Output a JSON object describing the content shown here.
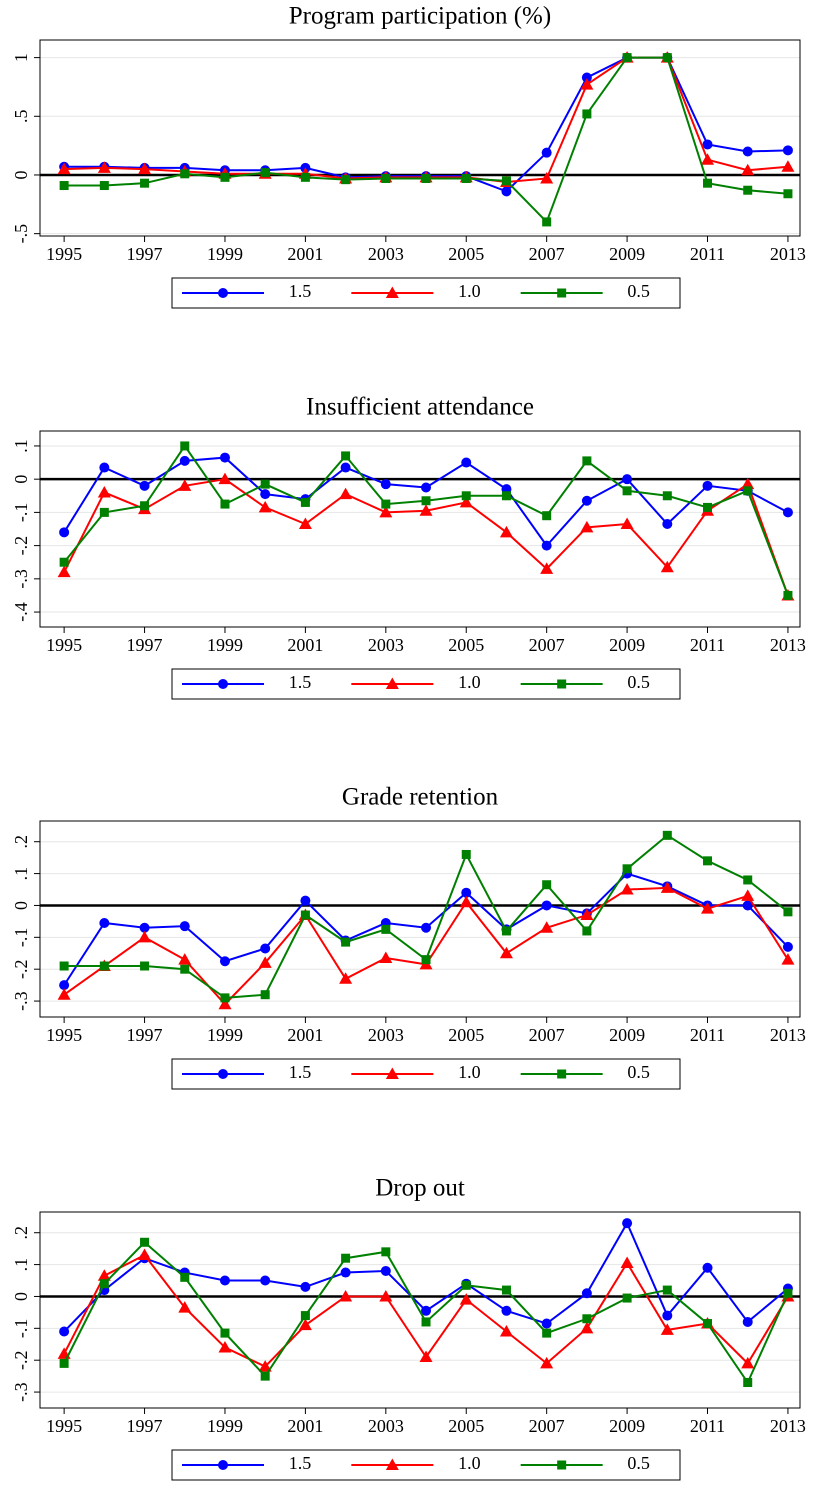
{
  "chart_data": [
    {
      "type": "line",
      "title": "Program participation (%)",
      "x": [
        1995,
        1996,
        1997,
        1998,
        1999,
        2000,
        2001,
        2002,
        2003,
        2004,
        2005,
        2006,
        2007,
        2008,
        2009,
        2010,
        2011,
        2012,
        2013
      ],
      "xlim": [
        1994.4,
        2013.3
      ],
      "xticks": [
        1995,
        1997,
        1999,
        2001,
        2003,
        2005,
        2007,
        2009,
        2011,
        2013
      ],
      "ylim": [
        -0.52,
        1.15
      ],
      "yticks": [
        {
          "value": -0.5,
          "label": "-.5"
        },
        0,
        {
          "value": 0.5,
          "label": ".5"
        },
        1
      ],
      "grid": true,
      "series": [
        {
          "name": "1.5",
          "color": "#0000ff",
          "marker": "circle",
          "values": [
            0.07,
            0.07,
            0.06,
            0.06,
            0.04,
            0.04,
            0.06,
            -0.02,
            -0.01,
            -0.01,
            -0.01,
            -0.14,
            0.19,
            0.83,
            1.0,
            1.0,
            0.26,
            0.2,
            0.21
          ]
        },
        {
          "name": "1.0",
          "color": "#ff0000",
          "marker": "triangle",
          "values": [
            0.05,
            0.06,
            0.05,
            0.03,
            0.01,
            0.01,
            0.01,
            -0.03,
            -0.02,
            -0.02,
            -0.02,
            -0.06,
            -0.03,
            0.77,
            1.0,
            1.0,
            0.13,
            0.04,
            0.07
          ]
        },
        {
          "name": "0.5",
          "color": "#008000",
          "marker": "square",
          "values": [
            -0.09,
            -0.09,
            -0.07,
            0.01,
            -0.02,
            0.02,
            -0.02,
            -0.04,
            -0.03,
            -0.03,
            -0.03,
            -0.05,
            -0.4,
            0.52,
            1.0,
            1.0,
            -0.07,
            -0.13,
            -0.16
          ]
        }
      ]
    },
    {
      "type": "line",
      "title": "Insufficient attendance",
      "x": [
        1995,
        1996,
        1997,
        1998,
        1999,
        2000,
        2001,
        2002,
        2003,
        2004,
        2005,
        2006,
        2007,
        2008,
        2009,
        2010,
        2011,
        2012,
        2013
      ],
      "xlim": [
        1994.4,
        2013.3
      ],
      "xticks": [
        1995,
        1997,
        1999,
        2001,
        2003,
        2005,
        2007,
        2009,
        2011,
        2013
      ],
      "ylim": [
        -0.445,
        0.145
      ],
      "yticks": [
        {
          "value": -0.4,
          "label": "-.4"
        },
        {
          "value": -0.3,
          "label": "-.3"
        },
        {
          "value": -0.2,
          "label": "-.2"
        },
        {
          "value": -0.1,
          "label": "-.1"
        },
        0,
        {
          "value": 0.1,
          "label": ".1"
        }
      ],
      "grid": true,
      "series": [
        {
          "name": "1.5",
          "color": "#0000ff",
          "marker": "circle",
          "values": [
            -0.16,
            0.035,
            -0.02,
            0.055,
            0.065,
            -0.045,
            -0.06,
            0.035,
            -0.015,
            -0.025,
            0.05,
            -0.03,
            -0.2,
            -0.065,
            0,
            -0.135,
            -0.02,
            -0.035,
            -0.1
          ]
        },
        {
          "name": "1.0",
          "color": "#ff0000",
          "marker": "triangle",
          "values": [
            -0.28,
            -0.04,
            -0.09,
            -0.02,
            0,
            -0.085,
            -0.135,
            -0.045,
            -0.1,
            -0.095,
            -0.07,
            -0.16,
            -0.27,
            -0.145,
            -0.135,
            -0.265,
            -0.095,
            -0.015,
            -0.35
          ]
        },
        {
          "name": "0.5",
          "color": "#008000",
          "marker": "square",
          "values": [
            -0.25,
            -0.1,
            -0.08,
            0.1,
            -0.075,
            -0.015,
            -0.07,
            0.07,
            -0.075,
            -0.065,
            -0.05,
            -0.05,
            -0.11,
            0.055,
            -0.035,
            -0.05,
            -0.085,
            -0.035,
            -0.35
          ]
        }
      ]
    },
    {
      "type": "line",
      "title": "Grade retention",
      "x": [
        1995,
        1996,
        1997,
        1998,
        1999,
        2000,
        2001,
        2002,
        2003,
        2004,
        2005,
        2006,
        2007,
        2008,
        2009,
        2010,
        2011,
        2012,
        2013
      ],
      "xlim": [
        1994.4,
        2013.3
      ],
      "xticks": [
        1995,
        1997,
        1999,
        2001,
        2003,
        2005,
        2007,
        2009,
        2011,
        2013
      ],
      "ylim": [
        -0.35,
        0.265
      ],
      "yticks": [
        {
          "value": -0.3,
          "label": "-.3"
        },
        {
          "value": -0.2,
          "label": "-.2"
        },
        {
          "value": -0.1,
          "label": "-.1"
        },
        0,
        {
          "value": 0.1,
          "label": ".1"
        },
        {
          "value": 0.2,
          "label": ".2"
        }
      ],
      "grid": true,
      "series": [
        {
          "name": "1.5",
          "color": "#0000ff",
          "marker": "circle",
          "values": [
            -0.25,
            -0.055,
            -0.07,
            -0.065,
            -0.175,
            -0.135,
            0.015,
            -0.11,
            -0.055,
            -0.07,
            0.04,
            -0.075,
            0,
            -0.025,
            0.1,
            0.06,
            0,
            0,
            -0.13
          ]
        },
        {
          "name": "1.0",
          "color": "#ff0000",
          "marker": "triangle",
          "values": [
            -0.28,
            -0.19,
            -0.1,
            -0.17,
            -0.31,
            -0.18,
            -0.03,
            -0.23,
            -0.165,
            -0.185,
            0.01,
            -0.15,
            -0.07,
            -0.03,
            0.05,
            0.055,
            -0.01,
            0.03,
            -0.17
          ]
        },
        {
          "name": "0.5",
          "color": "#008000",
          "marker": "square",
          "values": [
            -0.19,
            -0.19,
            -0.19,
            -0.2,
            -0.29,
            -0.28,
            -0.03,
            -0.115,
            -0.075,
            -0.17,
            0.16,
            -0.08,
            0.065,
            -0.08,
            0.115,
            0.22,
            0.14,
            0.08,
            -0.02
          ]
        }
      ]
    },
    {
      "type": "line",
      "title": "Drop out",
      "x": [
        1995,
        1996,
        1997,
        1998,
        1999,
        2000,
        2001,
        2002,
        2003,
        2004,
        2005,
        2006,
        2007,
        2008,
        2009,
        2010,
        2011,
        2012,
        2013
      ],
      "xlim": [
        1994.4,
        2013.3
      ],
      "xticks": [
        1995,
        1997,
        1999,
        2001,
        2003,
        2005,
        2007,
        2009,
        2011,
        2013
      ],
      "ylim": [
        -0.35,
        0.265
      ],
      "yticks": [
        {
          "value": -0.3,
          "label": "-.3"
        },
        {
          "value": -0.2,
          "label": "-.2"
        },
        {
          "value": -0.1,
          "label": "-.1"
        },
        0,
        {
          "value": 0.1,
          "label": ".1"
        },
        {
          "value": 0.2,
          "label": ".2"
        }
      ],
      "grid": true,
      "series": [
        {
          "name": "1.5",
          "color": "#0000ff",
          "marker": "circle",
          "values": [
            -0.11,
            0.02,
            0.12,
            0.075,
            0.05,
            0.05,
            0.03,
            0.075,
            0.08,
            -0.045,
            0.04,
            -0.045,
            -0.085,
            0.01,
            0.23,
            -0.06,
            0.09,
            -0.08,
            0.025
          ]
        },
        {
          "name": "1.0",
          "color": "#ff0000",
          "marker": "triangle",
          "values": [
            -0.18,
            0.065,
            0.13,
            -0.035,
            -0.16,
            -0.22,
            -0.09,
            0,
            0,
            -0.19,
            -0.01,
            -0.11,
            -0.21,
            -0.1,
            0.105,
            -0.105,
            -0.085,
            -0.21,
            0
          ]
        },
        {
          "name": "0.5",
          "color": "#008000",
          "marker": "square",
          "values": [
            -0.21,
            0.04,
            0.17,
            0.06,
            -0.115,
            -0.25,
            -0.06,
            0.12,
            0.14,
            -0.08,
            0.035,
            0.02,
            -0.115,
            -0.07,
            -0.005,
            0.02,
            -0.085,
            -0.27,
            0.01
          ]
        }
      ]
    }
  ]
}
